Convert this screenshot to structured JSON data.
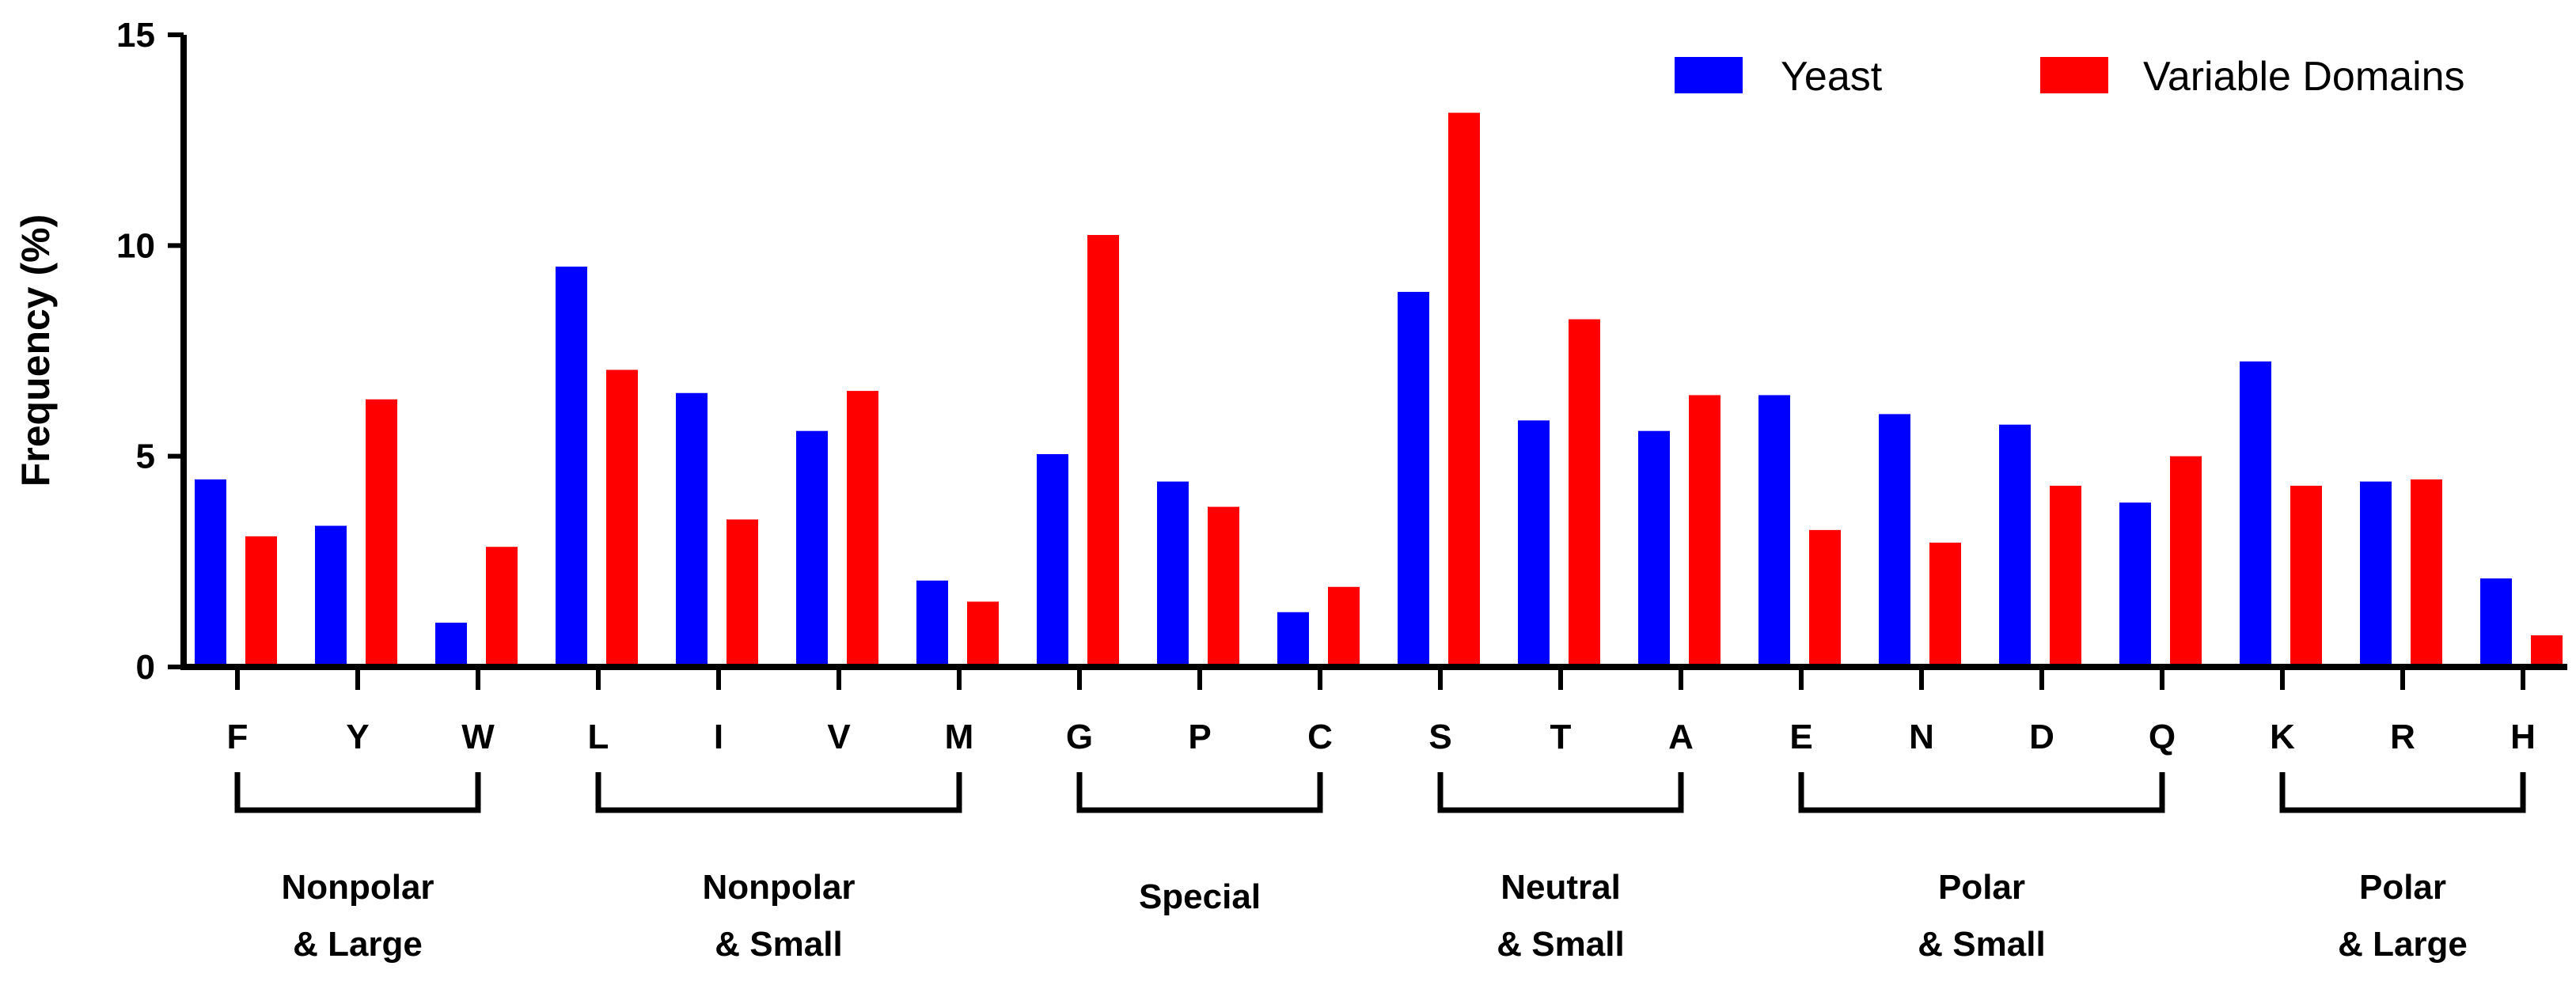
{
  "chart_data": {
    "type": "bar",
    "title": "",
    "xlabel": "",
    "ylabel": "Frequency (%)",
    "ylim": [
      0,
      15
    ],
    "yticks": [
      "0",
      "5",
      "10",
      "15"
    ],
    "categories": [
      "F",
      "Y",
      "W",
      "L",
      "I",
      "V",
      "M",
      "G",
      "P",
      "C",
      "S",
      "T",
      "A",
      "E",
      "N",
      "D",
      "Q",
      "K",
      "R",
      "H"
    ],
    "series": [
      {
        "name": "Yeast",
        "color": "#0000ff",
        "values": [
          4.45,
          3.35,
          1.05,
          9.5,
          6.5,
          5.6,
          2.05,
          5.05,
          4.4,
          1.3,
          8.9,
          5.85,
          5.6,
          6.45,
          6.0,
          5.75,
          3.9,
          7.25,
          4.4,
          2.1
        ]
      },
      {
        "name": "Variable Domains",
        "color": "#ff0000",
        "values": [
          3.1,
          6.35,
          2.85,
          7.05,
          3.5,
          6.55,
          1.55,
          10.25,
          3.8,
          1.9,
          13.15,
          8.25,
          6.45,
          3.25,
          2.95,
          4.3,
          5.0,
          4.3,
          4.45,
          0.75
        ]
      }
    ],
    "legend_position": "top-right",
    "groups": [
      {
        "label_line1": "Nonpolar",
        "label_line2": "& Large",
        "start": 0,
        "end": 2
      },
      {
        "label_line1": "Nonpolar",
        "label_line2": "& Small",
        "start": 3,
        "end": 6
      },
      {
        "label_line1": "Special",
        "label_line2": "",
        "start": 7,
        "end": 9
      },
      {
        "label_line1": "Neutral",
        "label_line2": "& Small",
        "start": 10,
        "end": 12
      },
      {
        "label_line1": "Polar",
        "label_line2": "& Small",
        "start": 13,
        "end": 16
      },
      {
        "label_line1": "Polar",
        "label_line2": "& Large",
        "start": 17,
        "end": 19
      }
    ]
  }
}
